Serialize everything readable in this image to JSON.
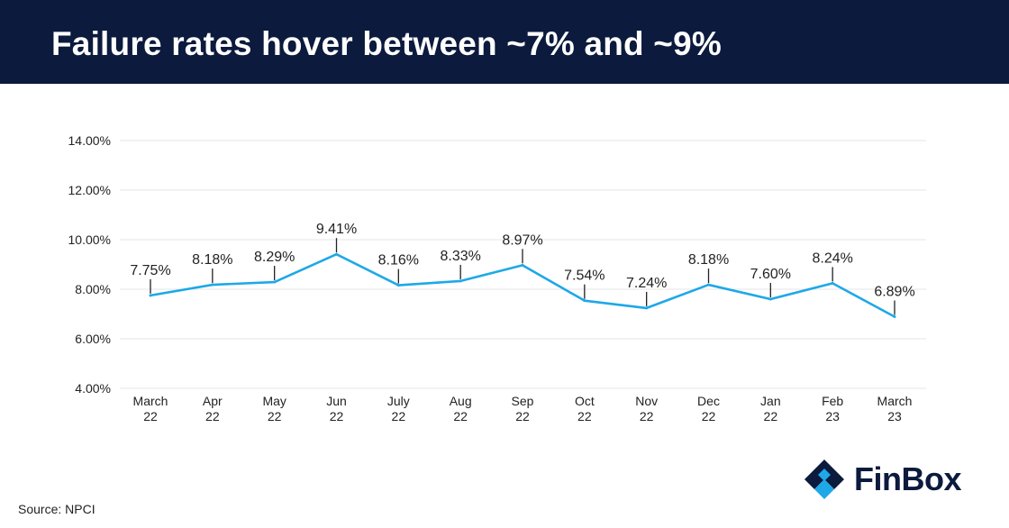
{
  "header": {
    "title": "Failure rates hover between ~7% and ~9%"
  },
  "chart_data": {
    "type": "line",
    "categories": [
      [
        "March",
        "22"
      ],
      [
        "Apr",
        "22"
      ],
      [
        "May",
        "22"
      ],
      [
        "Jun",
        "22"
      ],
      [
        "July",
        "22"
      ],
      [
        "Aug",
        "22"
      ],
      [
        "Sep",
        "22"
      ],
      [
        "Oct",
        "22"
      ],
      [
        "Nov",
        "22"
      ],
      [
        "Dec",
        "22"
      ],
      [
        "Jan",
        "22"
      ],
      [
        "Feb",
        "23"
      ],
      [
        "March",
        "23"
      ]
    ],
    "series": [
      {
        "values": [
          7.75,
          8.18,
          8.29,
          9.41,
          8.16,
          8.33,
          8.97,
          7.54,
          7.24,
          8.18,
          7.6,
          8.24,
          6.89
        ],
        "data_labels": [
          "7.75%",
          "8.18%",
          "8.29%",
          "9.41%",
          "8.16%",
          "8.33%",
          "8.97%",
          "7.54%",
          "7.24%",
          "8.18%",
          "7.60%",
          "8.24%",
          "6.89%"
        ],
        "color": "#1ea8e8"
      }
    ],
    "ylim": [
      4,
      14
    ],
    "yticks": [
      4,
      6,
      8,
      10,
      12,
      14
    ],
    "ytick_labels": [
      "4.00%",
      "6.00%",
      "8.00%",
      "10.00%",
      "12.00%",
      "14.00%"
    ],
    "grid": true,
    "title": "",
    "xlabel": "",
    "ylabel": ""
  },
  "footer": {
    "source": "Source: NPCI"
  },
  "logo": {
    "name": "FinBox",
    "icon": "finbox-logo-icon",
    "colors": [
      "#1ea8e8",
      "#0b1a3d"
    ]
  }
}
